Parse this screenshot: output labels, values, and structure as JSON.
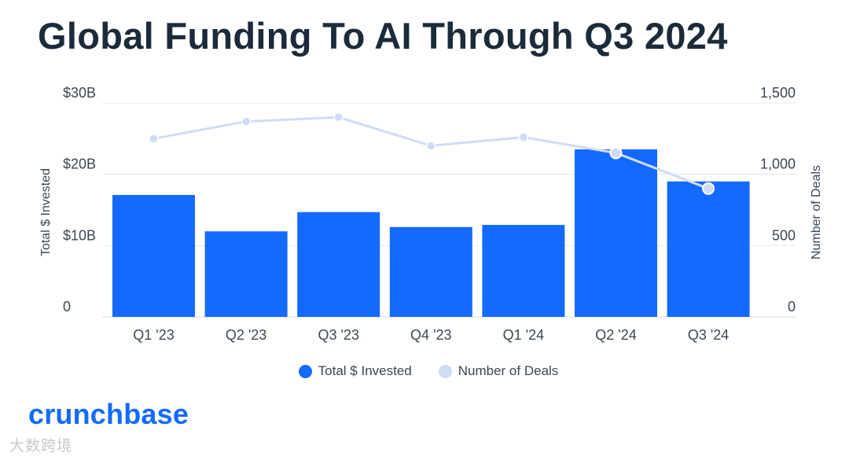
{
  "title": "Global Funding To AI Through Q3 2024",
  "chart_data": {
    "type": "bar",
    "categories": [
      "Q1 '23",
      "Q2 '23",
      "Q3 '23",
      "Q4 '23",
      "Q1 '24",
      "Q2 '24",
      "Q3 '24"
    ],
    "series": [
      {
        "name": "Total $ Invested",
        "type": "bar",
        "axis": "left",
        "values": [
          17.1,
          12.0,
          14.7,
          12.6,
          12.9,
          23.5,
          19.0
        ]
      },
      {
        "name": "Number of Deals",
        "type": "line",
        "axis": "right",
        "values": [
          1250,
          1370,
          1400,
          1200,
          1260,
          1150,
          900
        ],
        "highlighted_points": [
          5,
          6
        ]
      }
    ],
    "ylabel": "Total $ Invested",
    "y2label": "Number of Deals",
    "ylim": [
      0,
      30
    ],
    "y2lim": [
      0,
      1500
    ],
    "yticks": [
      "0",
      "$10B",
      "$20B",
      "$30B"
    ],
    "y2ticks": [
      "0",
      "500",
      "1,000",
      "1,500"
    ],
    "colors": {
      "bar": "#146aff",
      "line": "#cfdcf5",
      "grid": "#e6e8eb",
      "text": "#3b4754"
    }
  },
  "legend": [
    {
      "label": "Total $ Invested",
      "color": "#146aff"
    },
    {
      "label": "Number of Deals",
      "color": "#cfdcf5"
    }
  ],
  "brand": "crunchbase",
  "watermark": "大数跨境"
}
